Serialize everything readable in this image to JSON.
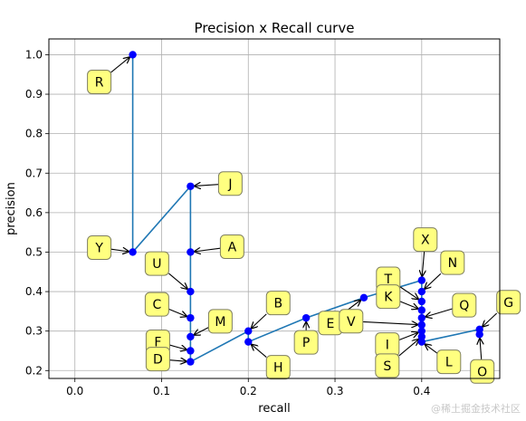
{
  "chart_data": {
    "type": "line",
    "title": "Precision x Recall curve",
    "xlabel": "recall",
    "ylabel": "precision",
    "xlim": [
      -0.03,
      0.49
    ],
    "ylim": [
      0.18,
      1.04
    ],
    "xticks": [
      0.0,
      0.1,
      0.2,
      0.3,
      0.4
    ],
    "xtick_labels": [
      "0.0",
      "0.1",
      "0.2",
      "0.3",
      "0.4"
    ],
    "yticks": [
      0.2,
      0.3,
      0.4,
      0.5,
      0.6,
      0.7,
      0.8,
      0.9,
      1.0
    ],
    "ytick_labels": [
      "0.2",
      "0.3",
      "0.4",
      "0.5",
      "0.6",
      "0.7",
      "0.8",
      "0.9",
      "1.0"
    ],
    "grid": true,
    "line_color": "#1f77b4",
    "marker_color": "#0000ff",
    "label_box_color": "#ffff80",
    "series": [
      {
        "points": [
          {
            "x": 0.0667,
            "y": 1.0
          },
          {
            "x": 0.0667,
            "y": 0.5
          },
          {
            "x": 0.1333,
            "y": 0.6667
          },
          {
            "x": 0.1333,
            "y": 0.5
          },
          {
            "x": 0.1333,
            "y": 0.4
          },
          {
            "x": 0.1333,
            "y": 0.3333
          },
          {
            "x": 0.1333,
            "y": 0.2857
          },
          {
            "x": 0.1333,
            "y": 0.25
          },
          {
            "x": 0.1333,
            "y": 0.2222
          },
          {
            "x": 0.2,
            "y": 0.3
          },
          {
            "x": 0.2,
            "y": 0.2727
          },
          {
            "x": 0.2667,
            "y": 0.3333
          },
          {
            "x": 0.3333,
            "y": 0.3846
          },
          {
            "x": 0.4,
            "y": 0.4286
          },
          {
            "x": 0.4,
            "y": 0.4
          },
          {
            "x": 0.4,
            "y": 0.375
          },
          {
            "x": 0.4,
            "y": 0.3529
          },
          {
            "x": 0.4,
            "y": 0.3333
          },
          {
            "x": 0.4,
            "y": 0.3158
          },
          {
            "x": 0.4,
            "y": 0.3
          },
          {
            "x": 0.4,
            "y": 0.2857
          },
          {
            "x": 0.4,
            "y": 0.2727
          },
          {
            "x": 0.4667,
            "y": 0.3043
          },
          {
            "x": 0.4667,
            "y": 0.2917
          }
        ]
      }
    ],
    "annotations": [
      {
        "text": "R",
        "point": 0
      },
      {
        "text": "Y",
        "point": 1
      },
      {
        "text": "J",
        "point": 2
      },
      {
        "text": "A",
        "point": 3
      },
      {
        "text": "U",
        "point": 4
      },
      {
        "text": "C",
        "point": 5
      },
      {
        "text": "M",
        "point": 6
      },
      {
        "text": "F",
        "point": 7
      },
      {
        "text": "D",
        "point": 8
      },
      {
        "text": "B",
        "point": 9
      },
      {
        "text": "H",
        "point": 10
      },
      {
        "text": "P",
        "point": 11
      },
      {
        "text": "E",
        "point": 12
      },
      {
        "text": "X",
        "point": 13
      },
      {
        "text": "N",
        "point": 14
      },
      {
        "text": "T",
        "point": 15
      },
      {
        "text": "K",
        "point": 16
      },
      {
        "text": "Q",
        "point": 17
      },
      {
        "text": "V",
        "point": 18
      },
      {
        "text": "I",
        "point": 19
      },
      {
        "text": "S",
        "point": 20
      },
      {
        "text": "L",
        "point": 21
      },
      {
        "text": "G",
        "point": 22
      },
      {
        "text": "O",
        "point": 23
      }
    ]
  },
  "watermark": "@稀土掘金技术社区"
}
